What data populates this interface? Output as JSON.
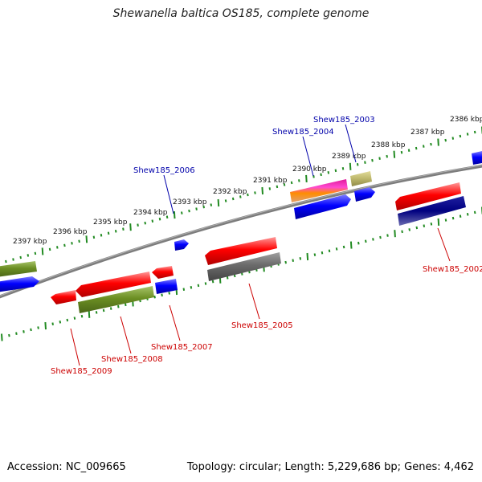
{
  "title": "Shewanella baltica OS185, complete genome",
  "footer": {
    "accession": "Accession: NC_009665",
    "topology": "Topology: circular; Length: 5,229,686 bp; Genes: 4,462"
  },
  "ticks": [
    {
      "label": "2386 kbp"
    },
    {
      "label": "2387 kbp"
    },
    {
      "label": "2388 kbp"
    },
    {
      "label": "2389 kbp"
    },
    {
      "label": "2390 kbp"
    },
    {
      "label": "2391 kbp"
    },
    {
      "label": "2392 kbp"
    },
    {
      "label": "2393 kbp"
    },
    {
      "label": "2394 kbp"
    },
    {
      "label": "2395 kbp"
    },
    {
      "label": "2396 kbp"
    },
    {
      "label": "2397 kbp"
    }
  ],
  "genes": [
    {
      "name": "Shew185_2002",
      "strand": "minus",
      "color": "#cc0000"
    },
    {
      "name": "Shew185_2003",
      "strand": "plus",
      "color": "#0000aa"
    },
    {
      "name": "Shew185_2004",
      "strand": "plus",
      "color": "#0000aa"
    },
    {
      "name": "Shew185_2005",
      "strand": "minus",
      "color": "#cc0000"
    },
    {
      "name": "Shew185_2006",
      "strand": "plus",
      "color": "#0000aa"
    },
    {
      "name": "Shew185_2007",
      "strand": "minus",
      "color": "#cc0000"
    },
    {
      "name": "Shew185_2008",
      "strand": "minus",
      "color": "#cc0000"
    },
    {
      "name": "Shew185_2009",
      "strand": "minus",
      "color": "#cc0000"
    }
  ],
  "colors": {
    "backbone": "#808080",
    "tick_marks": "#228b22",
    "feature_red": "#ff0000",
    "feature_blue": "#0000ff",
    "feature_olive": "#6b8e23",
    "feature_gray": "#707070",
    "feature_navy": "#000080",
    "feature_khaki": "#bdb76b",
    "feature_magenta": "#e0199a",
    "feature_orange": "#ff8c00"
  }
}
